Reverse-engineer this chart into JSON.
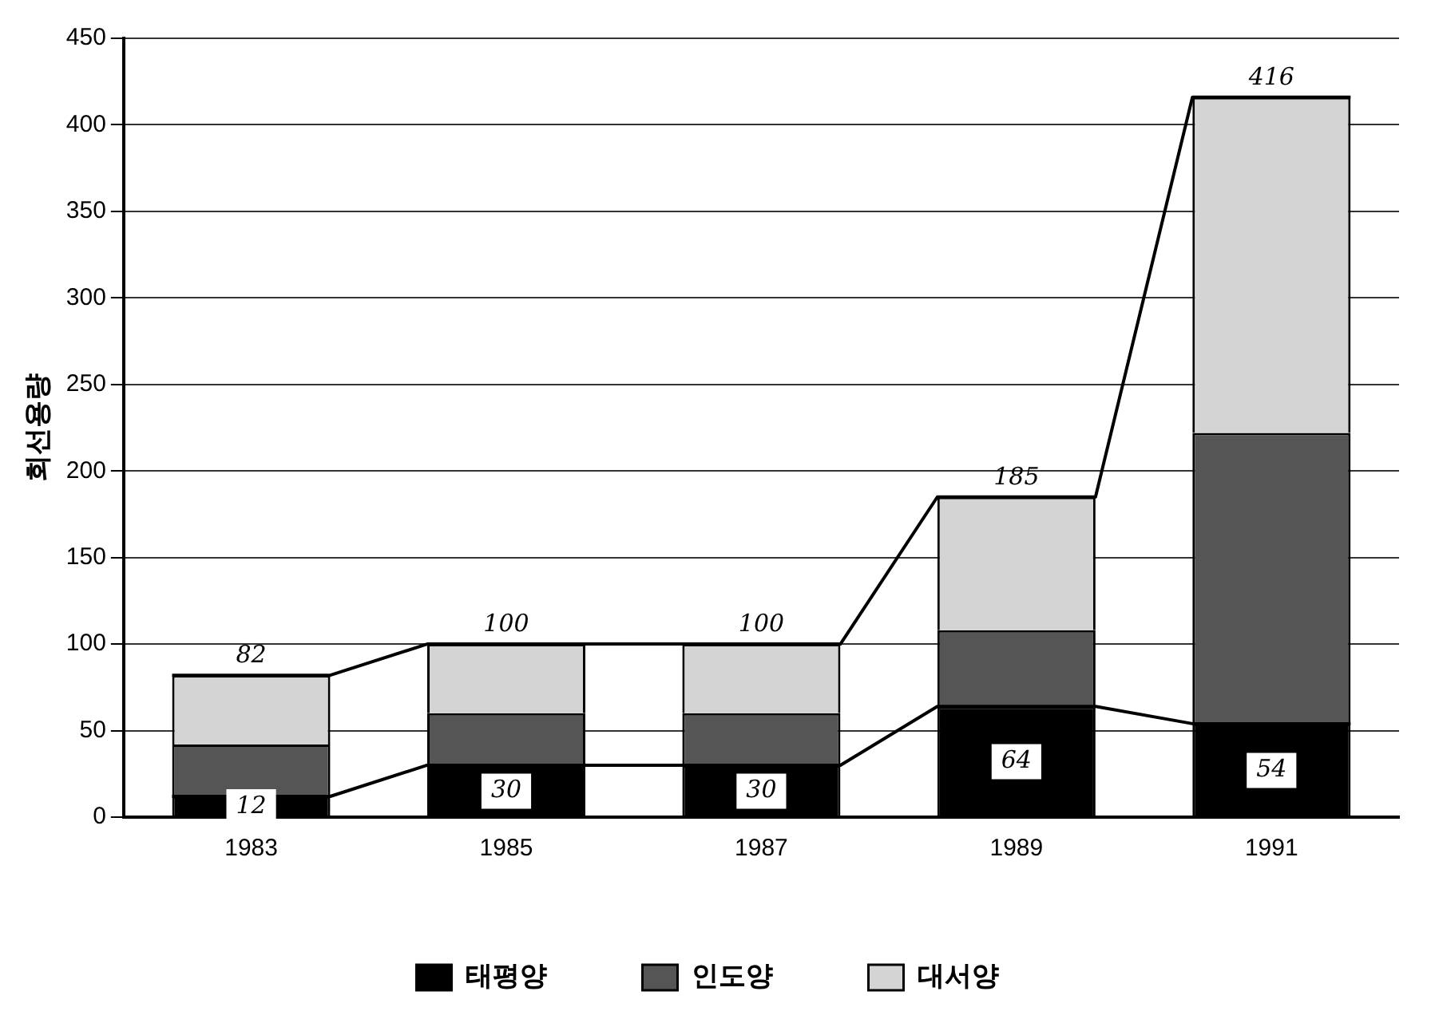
{
  "chart_data": {
    "type": "bar",
    "stacked": true,
    "ylabel": "회선용량",
    "categories": [
      "1983",
      "1985",
      "1987",
      "1989",
      "1991"
    ],
    "series": [
      {
        "name": "태평양",
        "color": "#000000",
        "values": [
          12,
          30,
          30,
          64,
          54
        ],
        "value_labels": [
          "12",
          "30",
          "30",
          "64",
          "54"
        ]
      },
      {
        "name": "인도양",
        "color": "#555555",
        "values": [
          30,
          30,
          30,
          44,
          168
        ]
      },
      {
        "name": "대서양",
        "color": "#d4d4d4",
        "values": [
          40,
          40,
          40,
          77,
          194
        ]
      }
    ],
    "totals": [
      "82",
      "100",
      "100",
      "185",
      "416"
    ],
    "ylim": [
      0,
      450
    ],
    "yticks": [
      0,
      50,
      100,
      150,
      200,
      250,
      300,
      350,
      400,
      450
    ],
    "grid": "y",
    "legend": "bottom"
  }
}
